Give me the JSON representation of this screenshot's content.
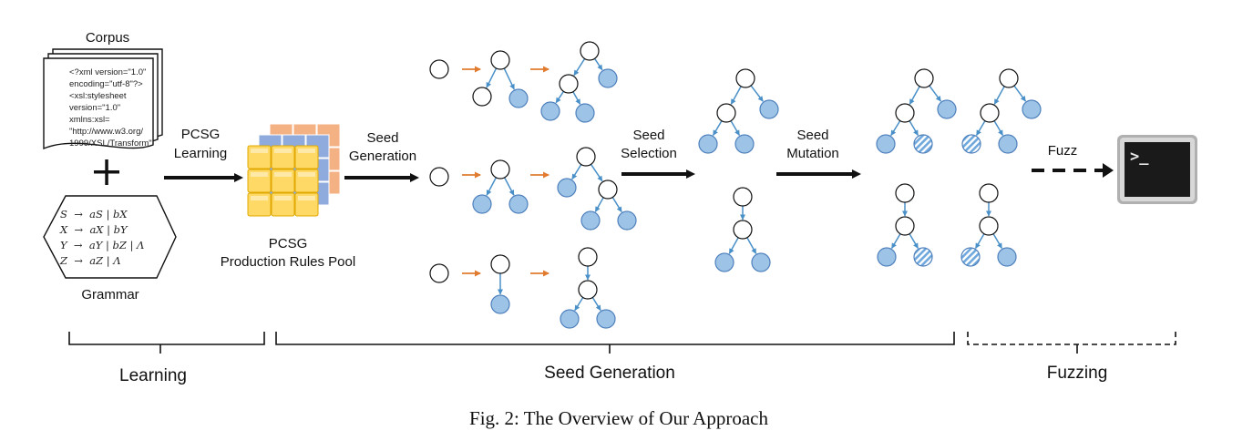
{
  "caption": "Fig. 2: The Overview of Our Approach",
  "corpus": {
    "label": "Corpus",
    "lines": [
      "<?xml version=\"1.0\"",
      "encoding=\"utf-8\"?>",
      "<xsl:stylesheet",
      "version=\"1.0\"",
      "xmlns:xsl=",
      "\"http://www.w3.org/",
      "1999/XSL/Transform\""
    ]
  },
  "grammar": {
    "label": "Grammar",
    "rules": [
      "S  →  aS | bX",
      "X  →  aX | bY",
      "Y  →  aY | bZ | Λ",
      "Z  →  aZ | Λ"
    ]
  },
  "pcsg_learning": {
    "line1": "PCSG",
    "line2": "Learning"
  },
  "rules_pool": {
    "line1": "PCSG",
    "line2": "Production Rules Pool"
  },
  "seed_generation": {
    "line1": "Seed",
    "line2": "Generation"
  },
  "seed_selection": {
    "line1": "Seed",
    "line2": "Selection"
  },
  "seed_mutation": {
    "line1": "Seed",
    "line2": "Mutation"
  },
  "fuzz": {
    "label": "Fuzz",
    "terminal_prompt": ">_"
  },
  "phases": {
    "learning": "Learning",
    "seed_generation": "Seed Generation",
    "fuzzing": "Fuzzing"
  },
  "colors": {
    "node_fill": "#9dc3e6",
    "node_stroke": "#4f81bd",
    "edge": "#4a90c8",
    "orange_arrow": "#e07b2f",
    "cube_yellow": "#ffd966",
    "cube_orange": "#f4b183",
    "cube_blue": "#8faadc"
  }
}
